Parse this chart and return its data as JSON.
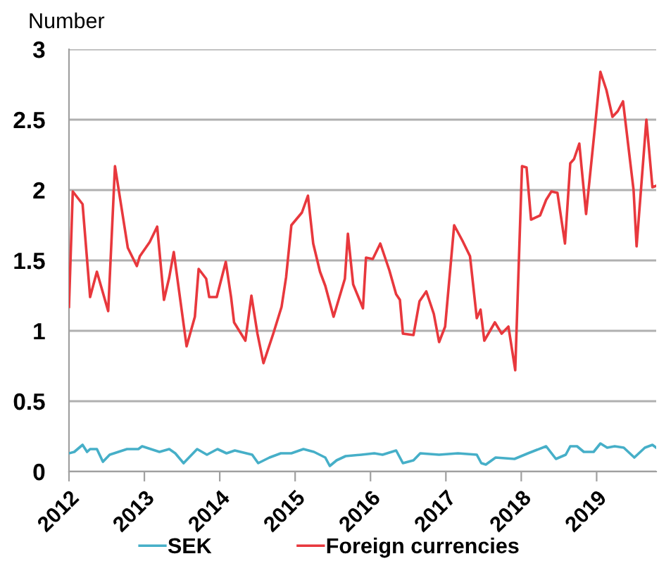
{
  "chart_data": {
    "type": "line",
    "ylabel": "Number",
    "xlim": [
      2012,
      2019.79
    ],
    "xticks": [
      2012,
      2013,
      2014,
      2015,
      2016,
      2017,
      2018,
      2019
    ],
    "ylim": [
      0,
      3
    ],
    "yticks": [
      0,
      0.5,
      1,
      1.5,
      2,
      2.5,
      3
    ],
    "grid": "y",
    "legend": "bottom",
    "marker": "none",
    "line_style": "solid",
    "series": [
      {
        "name": "SEK",
        "color": "#46afc8",
        "x": [
          2012.0,
          2012.07,
          2012.18,
          2012.24,
          2012.28,
          2012.37,
          2012.45,
          2012.54,
          2012.77,
          2012.92,
          2012.97,
          2013.2,
          2013.33,
          2013.41,
          2013.52,
          2013.7,
          2013.83,
          2013.97,
          2014.09,
          2014.2,
          2014.43,
          2014.51,
          2014.66,
          2014.81,
          2014.95,
          2015.11,
          2015.25,
          2015.4,
          2015.46,
          2015.55,
          2015.67,
          2015.88,
          2016.05,
          2016.16,
          2016.34,
          2016.43,
          2016.57,
          2016.66,
          2016.91,
          2017.16,
          2017.41,
          2017.47,
          2017.53,
          2017.66,
          2017.91,
          2018.09,
          2018.33,
          2018.46,
          2018.59,
          2018.65,
          2018.74,
          2018.83,
          2018.96,
          2019.05,
          2019.14,
          2019.24,
          2019.36,
          2019.5,
          2019.64,
          2019.74,
          2019.79
        ],
        "values": [
          0.13,
          0.14,
          0.19,
          0.14,
          0.16,
          0.16,
          0.07,
          0.12,
          0.16,
          0.16,
          0.18,
          0.14,
          0.16,
          0.13,
          0.06,
          0.16,
          0.12,
          0.16,
          0.13,
          0.15,
          0.12,
          0.06,
          0.1,
          0.13,
          0.13,
          0.16,
          0.14,
          0.1,
          0.04,
          0.08,
          0.11,
          0.12,
          0.13,
          0.12,
          0.15,
          0.06,
          0.08,
          0.13,
          0.12,
          0.13,
          0.12,
          0.06,
          0.05,
          0.1,
          0.09,
          0.13,
          0.18,
          0.09,
          0.12,
          0.18,
          0.18,
          0.14,
          0.14,
          0.2,
          0.17,
          0.18,
          0.17,
          0.1,
          0.17,
          0.19,
          0.17
        ]
      },
      {
        "name": "Foreign currencies",
        "color": "#e8383d",
        "x": [
          2012.0,
          2012.05,
          2012.18,
          2012.28,
          2012.37,
          2012.52,
          2012.61,
          2012.78,
          2012.9,
          2012.94,
          2013.07,
          2013.17,
          2013.26,
          2013.33,
          2013.39,
          2013.56,
          2013.67,
          2013.72,
          2013.82,
          2013.86,
          2013.96,
          2014.08,
          2014.15,
          2014.19,
          2014.34,
          2014.42,
          2014.5,
          2014.58,
          2014.71,
          2014.82,
          2014.88,
          2014.95,
          2015.09,
          2015.17,
          2015.24,
          2015.33,
          2015.4,
          2015.51,
          2015.66,
          2015.7,
          2015.77,
          2015.9,
          2015.94,
          2016.03,
          2016.13,
          2016.25,
          2016.34,
          2016.39,
          2016.43,
          2016.57,
          2016.65,
          2016.74,
          2016.84,
          2016.91,
          2016.99,
          2017.11,
          2017.22,
          2017.32,
          2017.41,
          2017.46,
          2017.51,
          2017.65,
          2017.74,
          2017.83,
          2017.92,
          2018.01,
          2018.07,
          2018.13,
          2018.25,
          2018.33,
          2018.4,
          2018.48,
          2018.58,
          2018.65,
          2018.7,
          2018.77,
          2018.86,
          2018.98,
          2019.05,
          2019.13,
          2019.21,
          2019.28,
          2019.35,
          2019.49,
          2019.53,
          2019.66,
          2019.74,
          2019.79
        ],
        "values": [
          1.17,
          1.99,
          1.9,
          1.24,
          1.42,
          1.14,
          2.17,
          1.59,
          1.46,
          1.53,
          1.63,
          1.74,
          1.22,
          1.38,
          1.56,
          0.89,
          1.1,
          1.44,
          1.37,
          1.24,
          1.24,
          1.49,
          1.24,
          1.06,
          0.93,
          1.25,
          0.98,
          0.77,
          0.98,
          1.17,
          1.38,
          1.75,
          1.84,
          1.96,
          1.62,
          1.42,
          1.32,
          1.1,
          1.37,
          1.69,
          1.33,
          1.16,
          1.52,
          1.51,
          1.62,
          1.43,
          1.26,
          1.22,
          0.98,
          0.97,
          1.21,
          1.28,
          1.12,
          0.92,
          1.03,
          1.75,
          1.64,
          1.53,
          1.09,
          1.15,
          0.93,
          1.06,
          0.98,
          1.03,
          0.72,
          2.17,
          2.16,
          1.79,
          1.82,
          1.93,
          1.99,
          1.98,
          1.62,
          2.19,
          2.22,
          2.33,
          1.83,
          2.46,
          2.84,
          2.71,
          2.52,
          2.56,
          2.63,
          2.0,
          1.6,
          2.5,
          2.02,
          2.03
        ]
      }
    ]
  }
}
